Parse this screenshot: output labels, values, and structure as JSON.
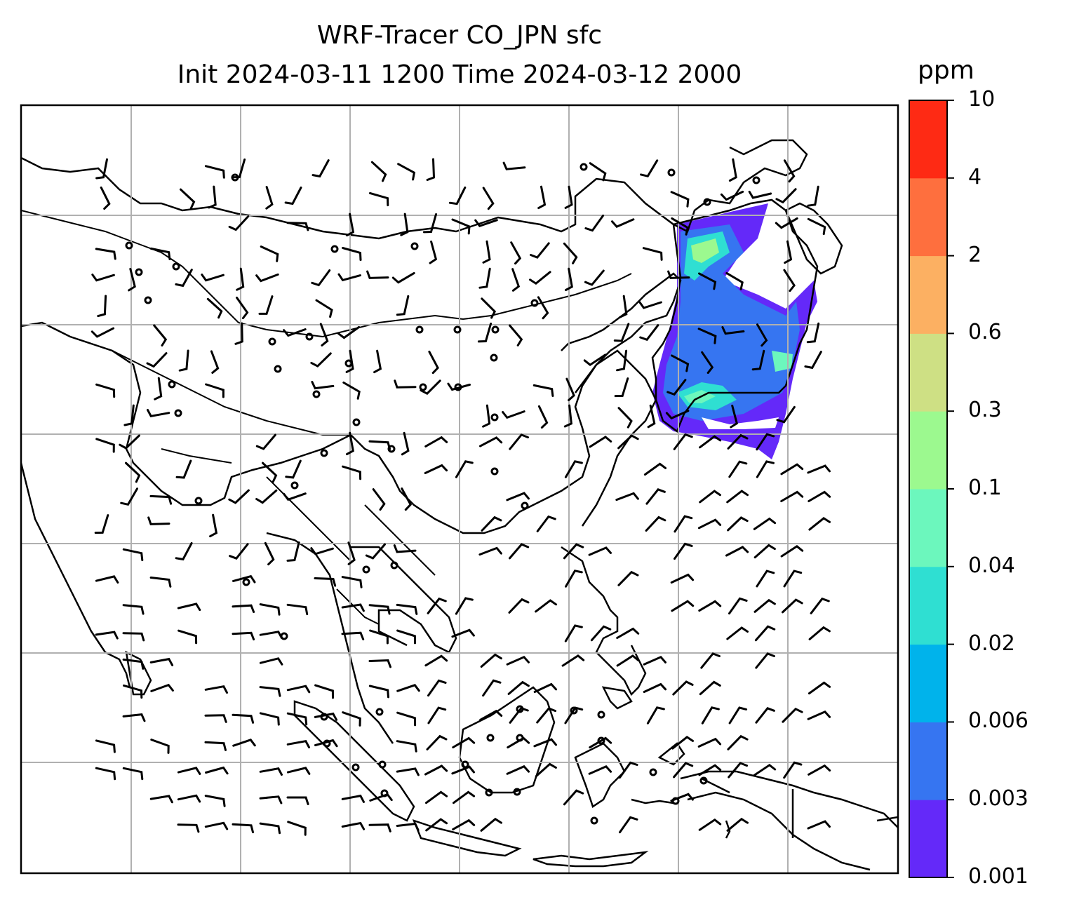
{
  "title": {
    "line1": "WRF-Tracer CO_JPN sfc",
    "line2": "Init 2024-03-11 1200 Time 2024-03-12 2000"
  },
  "colorbar": {
    "unit": "ppm",
    "levels": [
      "0.001",
      "0.003",
      "0.006",
      "0.02",
      "0.04",
      "0.1",
      "0.3",
      "0.6",
      "2",
      "4",
      "10"
    ],
    "colors": [
      "#6429f9",
      "#3675f1",
      "#00b3eb",
      "#2fdfd2",
      "#6cf7bd",
      "#9cf98f",
      "#cee084",
      "#fcb062",
      "#fe6f3e",
      "#fe2a14"
    ]
  },
  "map": {
    "features": [
      "coastlines",
      "country borders",
      "lat/lon gridlines",
      "wind barbs",
      "CO tracer concentration over Japan"
    ]
  }
}
